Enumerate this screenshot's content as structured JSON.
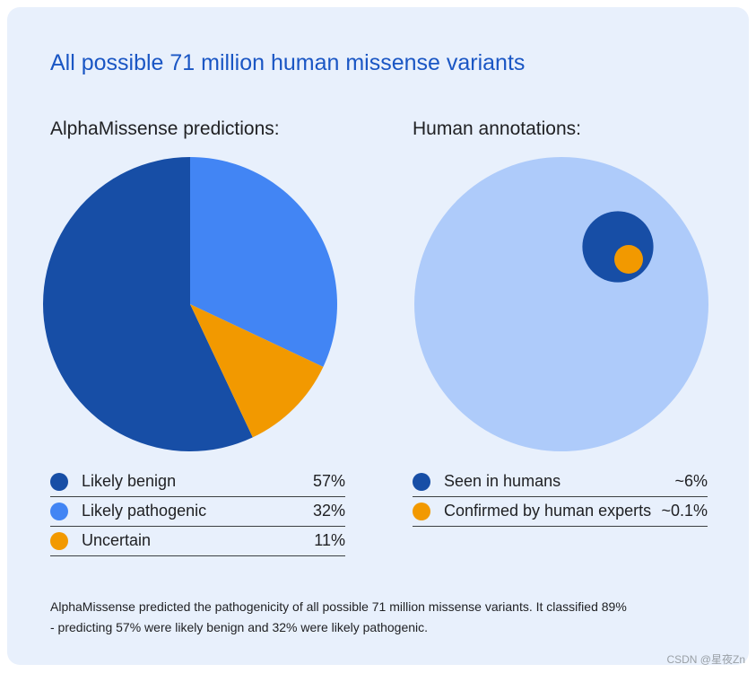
{
  "title": "All possible 71 million human missense variants",
  "colors": {
    "dark_blue": "#174ea6",
    "blue": "#4285f4",
    "orange": "#f29900",
    "light_blue": "#aecbfa"
  },
  "chart_data": [
    {
      "type": "pie",
      "title": "AlphaMissense predictions:",
      "categories": [
        "Likely benign",
        "Likely pathogenic",
        "Uncertain"
      ],
      "values": [
        57,
        32,
        11
      ],
      "value_labels": [
        "57%",
        "32%",
        "11%"
      ],
      "colors": [
        "#174ea6",
        "#4285f4",
        "#f29900"
      ]
    },
    {
      "type": "proportional-area",
      "title": "Human annotations:",
      "total_label": "All possible 71 million human missense variants",
      "categories": [
        "Seen in humans",
        "Confirmed by human experts"
      ],
      "values": [
        6,
        0.1
      ],
      "value_labels": [
        "~6%",
        "~0.1%"
      ],
      "colors": [
        "#174ea6",
        "#f29900"
      ],
      "background_color": "#aecbfa"
    }
  ],
  "caption": {
    "line1": "AlphaMissense predicted the pathogenicity of all possible 71 million missense variants. It classified 89%",
    "line2": "- predicting 57% were likely benign and 32% were likely pathogenic."
  },
  "watermark": "CSDN @星夜Zn"
}
